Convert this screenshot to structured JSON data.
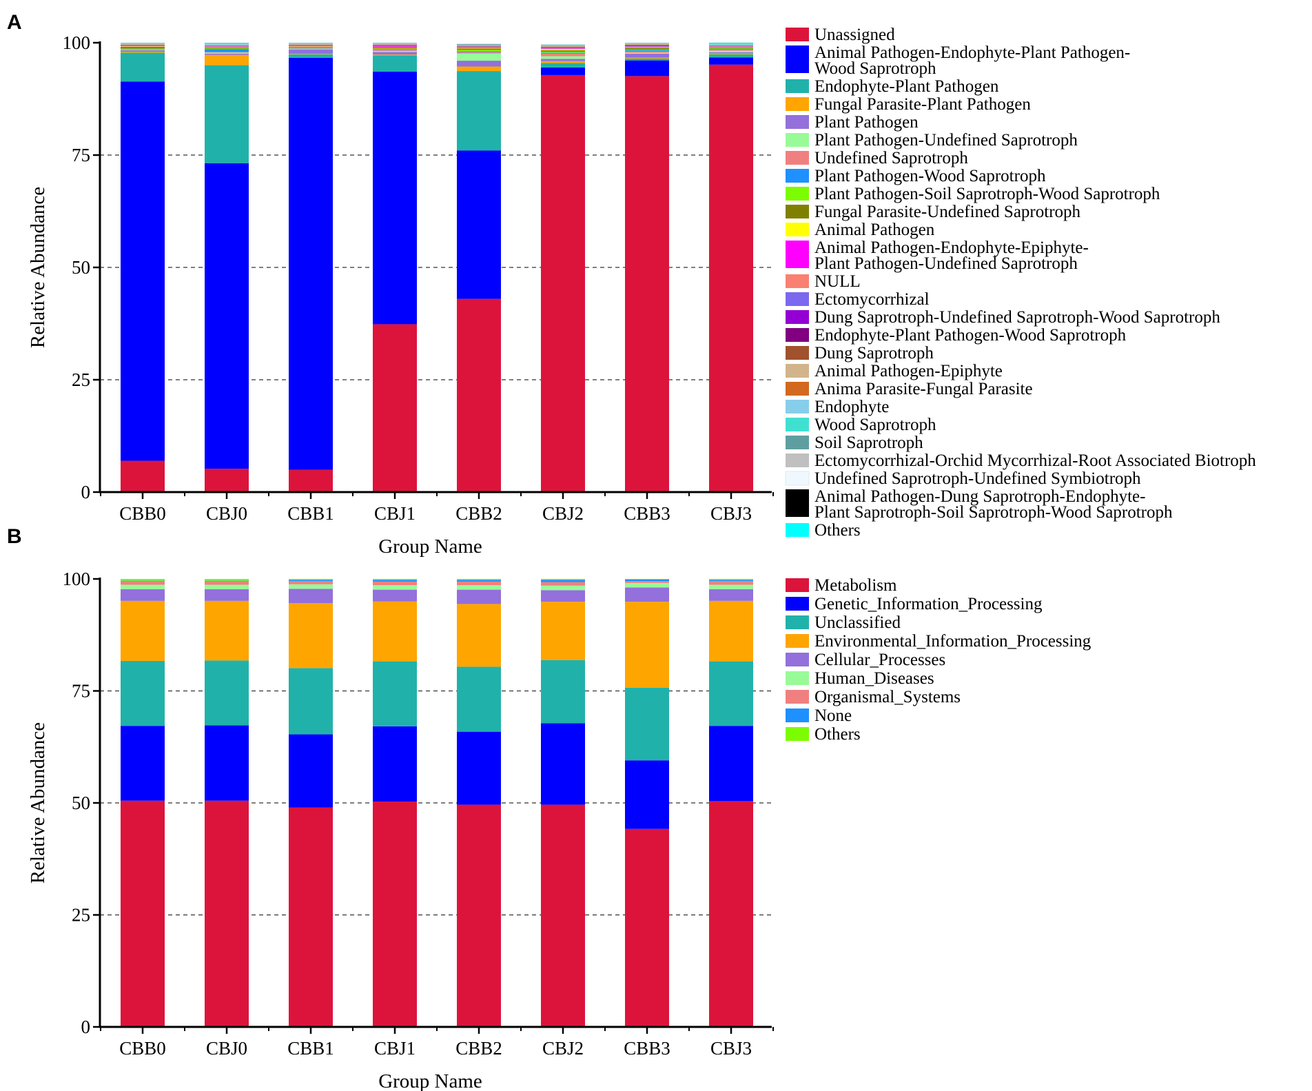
{
  "chart_data": [
    {
      "panel": "A",
      "type": "bar",
      "stacked": true,
      "xlabel": "Group Name",
      "ylabel": "Relative Abundance",
      "ylim": [
        0,
        100
      ],
      "yticks": [
        0,
        25,
        50,
        75,
        100
      ],
      "grid": "dashed at 25, 50, 75",
      "legend_position": "right",
      "categories": [
        "CBB0",
        "CBJ0",
        "CBB1",
        "CBJ1",
        "CBB2",
        "CBJ2",
        "CBB3",
        "CBJ3"
      ],
      "series": [
        {
          "name": "Unassigned",
          "color": "#DC143C",
          "values": [
            7.0,
            5.2,
            5.0,
            37.6,
            43.0,
            92.8,
            93.0,
            95.5
          ]
        },
        {
          "name": [
            "Animal Pathogen-Endophyte-Plant Pathogen-",
            "Wood Saprotroph"
          ],
          "color": "#0000FF",
          "values": [
            84.7,
            68.0,
            92.3,
            56.6,
            33.0,
            1.7,
            3.5,
            1.6
          ]
        },
        {
          "name": "Endophyte-Plant Pathogen",
          "color": "#20B2AA",
          "values": [
            6.5,
            21.8,
            0.8,
            3.6,
            17.7,
            1.0,
            0.4,
            0.7
          ]
        },
        {
          "name": "Fungal Parasite-Plant Pathogen",
          "color": "#FFA500",
          "values": [
            0.2,
            2.3,
            0.1,
            0.2,
            1.0,
            0.4,
            0.2,
            0.2
          ]
        },
        {
          "name": "Plant Pathogen",
          "color": "#9370DB",
          "values": [
            0.3,
            0.3,
            1.0,
            0.6,
            1.3,
            0.5,
            0.9,
            0.3
          ]
        },
        {
          "name": "Plant Pathogen-Undefined Saprotroph",
          "color": "#98FB98",
          "values": [
            0.1,
            0.2,
            0.1,
            0.2,
            1.6,
            0.6,
            0.2,
            0.3
          ]
        },
        {
          "name": "Undefined Saprotroph",
          "color": "#F08080",
          "values": [
            0.1,
            0.1,
            0.1,
            0.2,
            0.3,
            0.6,
            0.3,
            0.2
          ]
        },
        {
          "name": "Plant Pathogen-Wood Saprotroph",
          "color": "#1E90FF",
          "values": [
            0.1,
            0.7,
            0.1,
            0.1,
            0.2,
            0.2,
            0.3,
            0.2
          ]
        },
        {
          "name": "Plant Pathogen-Soil Saprotroph-Wood Saprotroph",
          "color": "#7CFC00",
          "values": [
            0.1,
            0.1,
            0.1,
            0.1,
            0.3,
            0.2,
            0.1,
            0.1
          ]
        },
        {
          "name": "Fungal Parasite-Undefined Saprotroph",
          "color": "#808000",
          "values": [
            0.4,
            0.2,
            0.2,
            0.2,
            0.3,
            0.3,
            0.4,
            0.2
          ]
        },
        {
          "name": "Animal Pathogen",
          "color": "#FFFF00",
          "values": [
            0.1,
            0.1,
            0.1,
            0.1,
            0.1,
            0.3,
            0.1,
            0.1
          ]
        },
        {
          "name": [
            "Animal Pathogen-Endophyte-Epiphyte-",
            "Plant Pathogen-Undefined Saprotroph"
          ],
          "color": "#FF00FF",
          "values": [
            0.1,
            0.1,
            0.1,
            0.3,
            0.1,
            0.1,
            0.1,
            0.1
          ]
        },
        {
          "name": "NULL",
          "color": "#FA8072",
          "values": [
            0.05,
            0.05,
            0.05,
            0.1,
            0.1,
            0.1,
            0.1,
            0.05
          ]
        },
        {
          "name": "Ectomycorrhizal",
          "color": "#7B68EE",
          "values": [
            0.05,
            0.05,
            0.05,
            0.1,
            0.1,
            0.1,
            0.1,
            0.05
          ]
        },
        {
          "name": "Dung Saprotroph-Undefined Saprotroph-Wood Saprotroph",
          "color": "#9400D3",
          "values": [
            0.05,
            0.05,
            0.05,
            0.1,
            0.05,
            0.05,
            0.05,
            0.05
          ]
        },
        {
          "name": "Endophyte-Plant Pathogen-Wood Saprotroph",
          "color": "#800080",
          "values": [
            0.05,
            0.05,
            0.05,
            0.05,
            0.05,
            0.05,
            0.05,
            0.05
          ]
        },
        {
          "name": "Dung Saprotroph",
          "color": "#A0522D",
          "values": [
            0.05,
            0.05,
            0.05,
            0.05,
            0.05,
            0.1,
            0.2,
            0.05
          ]
        },
        {
          "name": "Animal Pathogen-Epiphyte",
          "color": "#D2B48C",
          "values": [
            0.05,
            0.05,
            0.05,
            0.05,
            0.05,
            0.1,
            0.05,
            0.05
          ]
        },
        {
          "name": "Anima Parasite-Fungal Parasite",
          "color": "#D2691E",
          "values": [
            0.05,
            0.05,
            0.05,
            0.05,
            0.05,
            0.05,
            0.05,
            0.05
          ]
        },
        {
          "name": "Endophyte",
          "color": "#87CEEB",
          "values": [
            0.05,
            0.2,
            0.05,
            0.05,
            0.05,
            0.05,
            0.05,
            0.05
          ]
        },
        {
          "name": "Wood Saprotroph",
          "color": "#40E0D0",
          "values": [
            0.05,
            0.05,
            0.05,
            0.05,
            0.05,
            0.05,
            0.05,
            0.2
          ]
        },
        {
          "name": "Soil Saprotroph",
          "color": "#5F9EA0",
          "values": [
            0.05,
            0.05,
            0.05,
            0.05,
            0.1,
            0.05,
            0.05,
            0.05
          ]
        },
        {
          "name": "Ectomycorrhizal-Orchid Mycorrhizal-Root Associated Biotroph",
          "color": "#C0C0C0",
          "values": [
            0.05,
            0.1,
            0.05,
            0.05,
            0.05,
            0.05,
            0.05,
            0.05
          ]
        },
        {
          "name": "Undefined Saprotroph-Undefined Symbiotroph",
          "color": "#F0F8FF",
          "values": [
            0.05,
            0.05,
            0.05,
            0.05,
            0.05,
            0.05,
            0.05,
            0.05
          ]
        },
        {
          "name": [
            "Animal Pathogen-Dung Saprotroph-Endophyte-",
            "Plant Saprotroph-Soil Saprotroph-Wood Saprotroph"
          ],
          "color": "#000000",
          "values": [
            0.05,
            0.05,
            0.05,
            0.05,
            0.05,
            0.05,
            0.05,
            0.05
          ]
        },
        {
          "name": "Others",
          "color": "#00FFFF",
          "values": [
            0.05,
            0.05,
            0.05,
            0.05,
            0.05,
            0.05,
            0.05,
            0.1
          ]
        }
      ]
    },
    {
      "panel": "B",
      "type": "bar",
      "stacked": true,
      "xlabel": "Group Name",
      "ylabel": "Relative Abundance",
      "ylim": [
        0,
        100
      ],
      "yticks": [
        0,
        25,
        50,
        75,
        100
      ],
      "grid": "dashed at 25, 50, 75",
      "legend_position": "right",
      "categories": [
        "CBB0",
        "CBJ0",
        "CBB1",
        "CBJ1",
        "CBB2",
        "CBJ2",
        "CBB3",
        "CBJ3"
      ],
      "series": [
        {
          "name": "Metabolism",
          "color": "#DC143C",
          "values": [
            50.5,
            50.5,
            49.0,
            50.3,
            49.6,
            49.6,
            44.2,
            50.4
          ]
        },
        {
          "name": "Genetic_Information_Processing",
          "color": "#0000FF",
          "values": [
            16.7,
            16.8,
            16.3,
            16.8,
            16.3,
            18.2,
            15.3,
            16.8
          ]
        },
        {
          "name": "Unclassified",
          "color": "#20B2AA",
          "values": [
            14.5,
            14.5,
            14.8,
            14.5,
            14.5,
            14.1,
            16.2,
            14.4
          ]
        },
        {
          "name": "Environmental_Information_Processing",
          "color": "#FFA500",
          "values": [
            13.4,
            13.3,
            14.5,
            13.4,
            14.0,
            13.0,
            19.2,
            13.5
          ]
        },
        {
          "name": "Cellular_Processes",
          "color": "#9370DB",
          "values": [
            2.6,
            2.6,
            3.2,
            2.6,
            3.2,
            2.6,
            3.2,
            2.6
          ]
        },
        {
          "name": "Human_Diseases",
          "color": "#98FB98",
          "values": [
            1.0,
            1.0,
            1.0,
            1.0,
            1.0,
            1.0,
            1.0,
            1.0
          ]
        },
        {
          "name": "Organismal_Systems",
          "color": "#F08080",
          "values": [
            0.8,
            0.8,
            0.7,
            0.8,
            0.8,
            0.8,
            0.4,
            0.8
          ]
        },
        {
          "name": "None",
          "color": "#1E90FF",
          "values": [
            0.1,
            0.1,
            0.3,
            0.4,
            0.4,
            0.5,
            0.4,
            0.3
          ]
        },
        {
          "name": "Others",
          "color": "#7CFC00",
          "values": [
            0.4,
            0.4,
            0.2,
            0.2,
            0.2,
            0.2,
            0.1,
            0.2
          ]
        }
      ]
    }
  ]
}
